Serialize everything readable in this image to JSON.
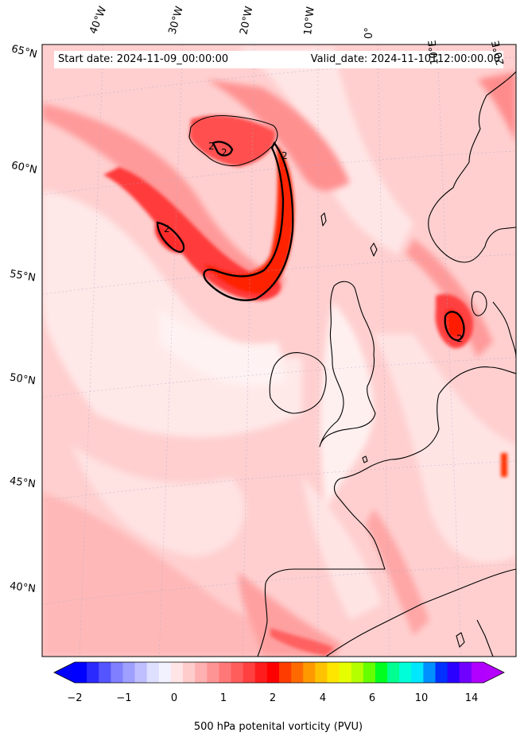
{
  "map": {
    "start_date": "Start date: 2024-11-09_00:00:00",
    "valid_date": "Valid_date: 2024-11-10T12:00:00.00",
    "contour_label": "2",
    "lon_labels": [
      "40°W",
      "30°W",
      "20°W",
      "10°W",
      "0°",
      "10°E",
      "20°E"
    ],
    "lat_labels": [
      "65°N",
      "60°N",
      "55°N",
      "50°N",
      "45°N",
      "40°N"
    ]
  },
  "colorbar": {
    "label": "500 hPa potenital vorticity (PVU)",
    "ticks": [
      "−2",
      "−1",
      "0",
      "1",
      "2",
      "4",
      "6",
      "10",
      "14"
    ],
    "colors": [
      "#0000ff",
      "#2a2aff",
      "#5555ff",
      "#7f7fff",
      "#9f9fff",
      "#bfbfff",
      "#dfdfff",
      "#f2f2ff",
      "#ffe5e5",
      "#ffcccc",
      "#ffb0b0",
      "#ff9494",
      "#ff7878",
      "#ff5c5c",
      "#ff4040",
      "#ff1c1c",
      "#ff0000",
      "#ff3c00",
      "#ff6a00",
      "#ff9900",
      "#ffc200",
      "#ffe600",
      "#e6ff00",
      "#b4ff00",
      "#66ff00",
      "#00ff20",
      "#00ff90",
      "#00ffd8",
      "#00e8ff",
      "#0090ff",
      "#0030ff",
      "#2a00ff",
      "#7000ff",
      "#b000ff"
    ],
    "low_extend_color": "#0000ff",
    "high_extend_color": "#b400ff"
  }
}
